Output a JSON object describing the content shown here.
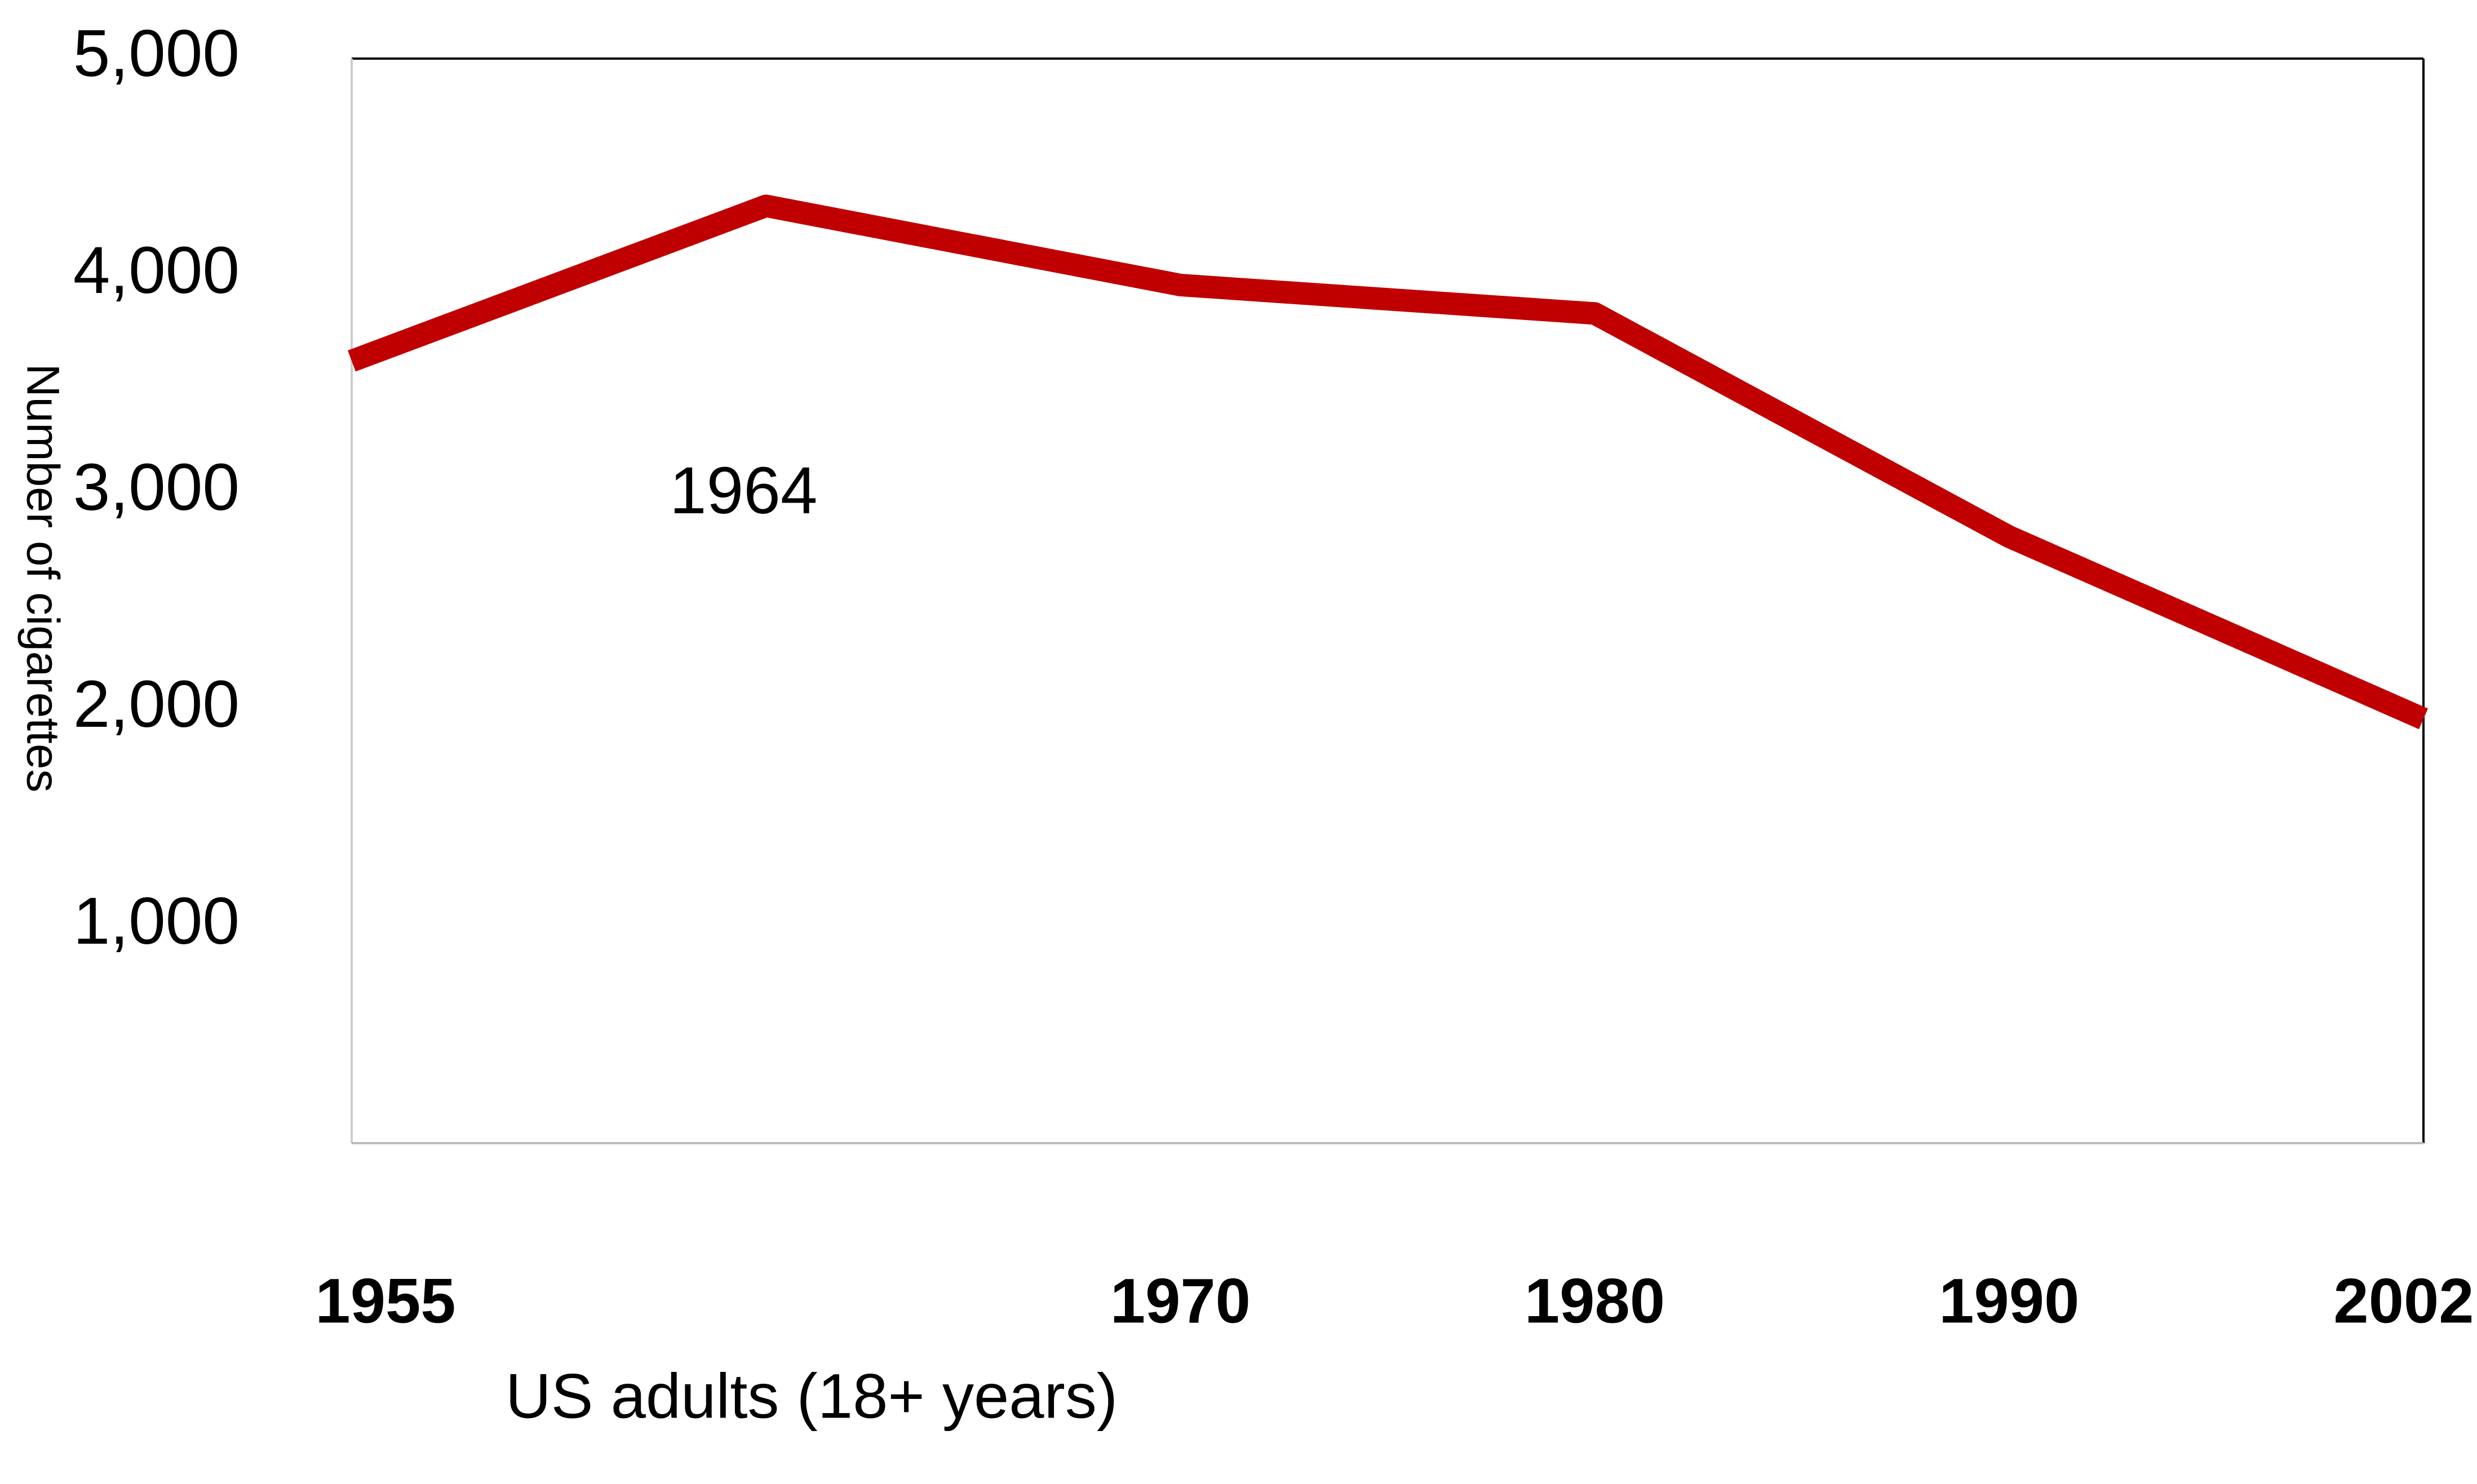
{
  "chart_data": {
    "type": "line",
    "y_label": "Number of cigarettes",
    "x_label": "US adults (18+ years)",
    "categories": [
      "1955",
      "1964",
      "1970",
      "1980",
      "1990",
      "2002"
    ],
    "series": [
      {
        "name": "US adults (18+ years)",
        "color": "#c00000",
        "values": [
          3606,
          4321,
          3956,
          3825,
          2796,
          1956
        ]
      }
    ],
    "ylim": [
      0,
      5000
    ],
    "yticks": [
      {
        "value": 1000,
        "label": "1,000"
      },
      {
        "value": 2000,
        "label": "2,000"
      },
      {
        "value": 3000,
        "label": "3,000"
      },
      {
        "value": 4000,
        "label": "4,000"
      },
      {
        "value": 5000,
        "label": "5,000"
      }
    ],
    "grid": false
  }
}
